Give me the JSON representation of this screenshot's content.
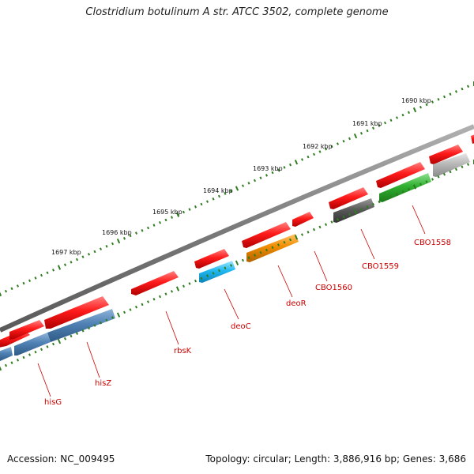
{
  "title": "Clostridium botulinum A str. ATCC 3502, complete genome",
  "footer": {
    "accession": "Accession: NC_009495",
    "summary": "Topology: circular; Length: 3,886,916 bp; Genes: 3,686"
  },
  "ticks": [
    {
      "label": "1690 kbp",
      "kbp": 1690
    },
    {
      "label": "1691 kbp",
      "kbp": 1691
    },
    {
      "label": "1692 kbp",
      "kbp": 1692
    },
    {
      "label": "1693 kbp",
      "kbp": 1693
    },
    {
      "label": "1694 kbp",
      "kbp": 1694
    },
    {
      "label": "1695 kbp",
      "kbp": 1695
    },
    {
      "label": "1696 kbp",
      "kbp": 1696
    },
    {
      "label": "1697 kbp",
      "kbp": 1697
    }
  ],
  "genes": [
    {
      "name": "hisG",
      "label": "hisG"
    },
    {
      "name": "hisZ",
      "label": "hisZ"
    },
    {
      "name": "rbsK",
      "label": "rbsK"
    },
    {
      "name": "deoC",
      "label": "deoC"
    },
    {
      "name": "deoR",
      "label": "deoR"
    },
    {
      "name": "CBO1560",
      "label": "CBO1560"
    },
    {
      "name": "CBO1559",
      "label": "CBO1559"
    },
    {
      "name": "CBO1558",
      "label": "CBO1558"
    }
  ],
  "colors": {
    "backbone": "#7a7a7a",
    "tick": "#2e7d1e",
    "gene_label": "#cc0000",
    "outer_features": "#ff1a1a",
    "hisG": "#4f81b4",
    "hisZ": "#4f81b4",
    "deoC": "#1fb8f0",
    "deoR": "#f08c00",
    "CBO1559": "#5a5a5a",
    "CBO1558": "#2fb02f",
    "gray_feature": "#b8b8b8"
  }
}
